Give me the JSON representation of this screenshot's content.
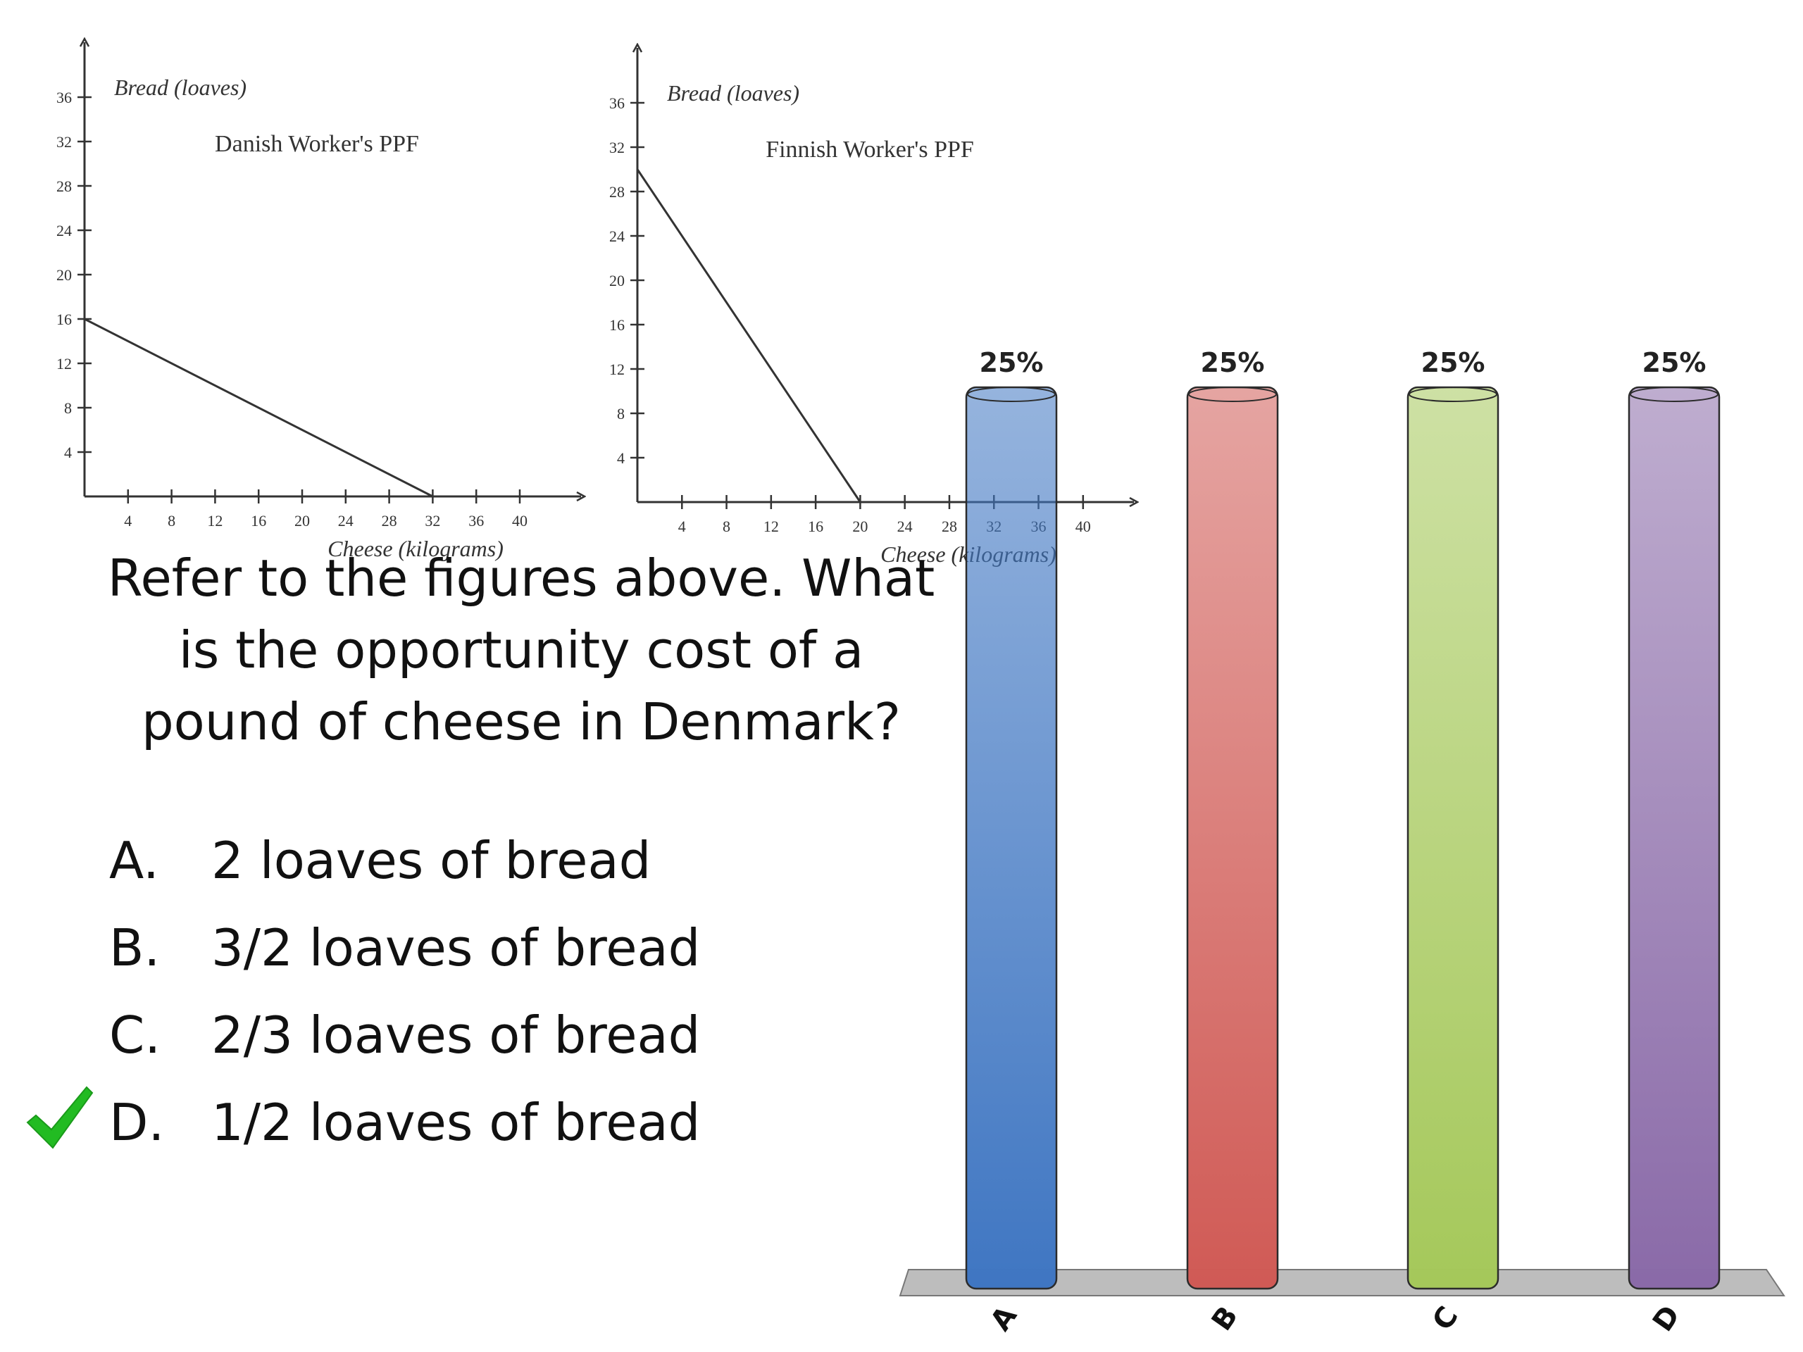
{
  "chart_data": [
    {
      "type": "line",
      "title": "Danish Worker's PPF",
      "xlabel": "Cheese (kilograms)",
      "ylabel": "Bread (loaves)",
      "xlim": [
        0,
        44
      ],
      "ylim": [
        0,
        38
      ],
      "x_ticks": [
        4,
        8,
        12,
        16,
        20,
        24,
        28,
        32,
        36,
        40
      ],
      "y_ticks": [
        4,
        8,
        12,
        16,
        20,
        24,
        28,
        32,
        36
      ],
      "series": [
        {
          "x": [
            0,
            32
          ],
          "y": [
            16,
            0
          ]
        }
      ]
    },
    {
      "type": "line",
      "title": "Finnish Worker's PPF",
      "xlabel": "Cheese (kilograms)",
      "ylabel": "Bread (loaves)",
      "xlim": [
        0,
        44
      ],
      "ylim": [
        0,
        38
      ],
      "x_ticks": [
        4,
        8,
        12,
        16,
        20,
        24,
        28,
        32,
        36,
        40
      ],
      "y_ticks": [
        4,
        8,
        12,
        16,
        20,
        24,
        28,
        32,
        36
      ],
      "series": [
        {
          "x": [
            0,
            20
          ],
          "y": [
            30,
            0
          ]
        }
      ]
    },
    {
      "type": "bar",
      "categories": [
        "A",
        "B",
        "C",
        "D"
      ],
      "values": [
        25,
        25,
        25,
        25
      ],
      "value_labels": [
        "25%",
        "25%",
        "25%",
        "25%"
      ],
      "unit": "%",
      "ylim": [
        0,
        25
      ],
      "colors": [
        "#3f76c2",
        "#d05a55",
        "#a5c85a",
        "#8a6aa8"
      ]
    }
  ],
  "question": {
    "lines": [
      "Refer to the figures above. What",
      "is the opportunity cost of a",
      "pound of cheese in Denmark?"
    ]
  },
  "options": [
    {
      "letter": "A.",
      "text": "2 loaves of bread",
      "correct": false
    },
    {
      "letter": "B.",
      "text": "3/2 loaves of bread",
      "correct": false
    },
    {
      "letter": "C.",
      "text": "2/3 loaves of bread",
      "correct": false
    },
    {
      "letter": "D.",
      "text": "1/2 loaves of bread",
      "correct": true
    }
  ],
  "icons": {
    "correct": "checkmark-icon",
    "correct_color": "#22bb22"
  }
}
